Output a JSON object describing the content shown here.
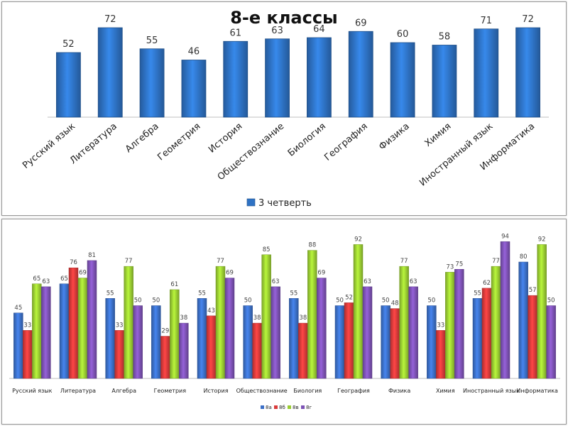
{
  "chart_data": [
    {
      "type": "bar",
      "title": "8-е классы",
      "categories": [
        "Русский язык",
        "Литература",
        "Алгебра",
        "Геометрия",
        "История",
        "Обществознание",
        "Биология",
        "География",
        "Физика",
        "Химия",
        "Иностранный язык",
        "Информатика"
      ],
      "series": [
        {
          "name": "3 четверть",
          "values": [
            52,
            72,
            55,
            46,
            61,
            63,
            64,
            69,
            60,
            58,
            71,
            72
          ],
          "color": "#2e72c4"
        }
      ],
      "xlabel": "",
      "ylabel": "",
      "ylim": [
        0,
        80
      ],
      "grid": false,
      "legend": "bottom"
    },
    {
      "type": "bar",
      "title": "",
      "categories": [
        "Русский язык",
        "Литература",
        "Алгебра",
        "Геометрия",
        "История",
        "Обществознание",
        "Биология",
        "География",
        "Физика",
        "Химия",
        "Иностранный язык",
        "Информатика"
      ],
      "series": [
        {
          "name": "8а",
          "values": [
            45,
            65,
            55,
            50,
            55,
            50,
            55,
            50,
            50,
            50,
            55,
            80
          ],
          "color": "#3b6fc7"
        },
        {
          "name": "8б",
          "values": [
            33,
            76,
            33,
            29,
            43,
            38,
            38,
            52,
            48,
            33,
            62,
            57
          ],
          "color": "#d93a3a"
        },
        {
          "name": "8в",
          "values": [
            65,
            69,
            77,
            61,
            77,
            85,
            88,
            92,
            77,
            73,
            77,
            92
          ],
          "color": "#9acd32"
        },
        {
          "name": "8г",
          "values": [
            63,
            81,
            50,
            38,
            69,
            63,
            69,
            63,
            63,
            75,
            94,
            50
          ],
          "color": "#7d52b5"
        }
      ],
      "xlabel": "",
      "ylabel": "",
      "ylim": [
        0,
        100
      ],
      "grid": false,
      "legend": "bottom"
    }
  ]
}
